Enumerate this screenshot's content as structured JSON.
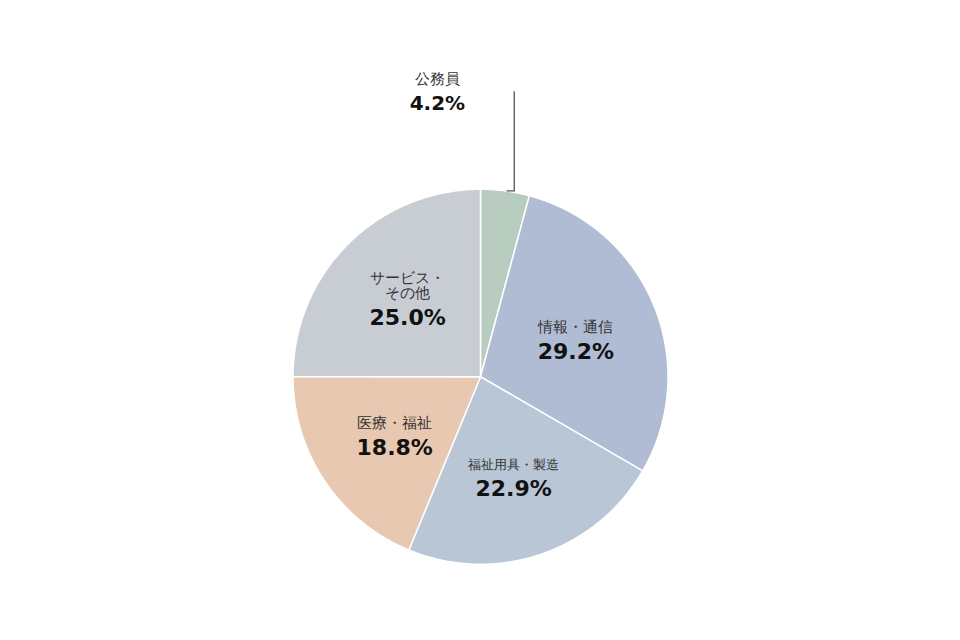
{
  "chart_data": {
    "type": "pie",
    "categories": [
      "公務員",
      "情報・通信",
      "福祉用具・製造",
      "医療・福祉",
      "サービス・\nその他"
    ],
    "values": [
      4.2,
      29.2,
      22.9,
      18.8,
      25.0
    ],
    "value_labels": [
      "4.2%",
      "29.2%",
      "22.9%",
      "18.8%",
      "25.0%"
    ],
    "colors": [
      "#b8ccc0",
      "#b0bcd4",
      "#b8c6d6",
      "#e8c8b0",
      "#c8cdd4"
    ],
    "data_labels": true,
    "tick_labels": false
  }
}
